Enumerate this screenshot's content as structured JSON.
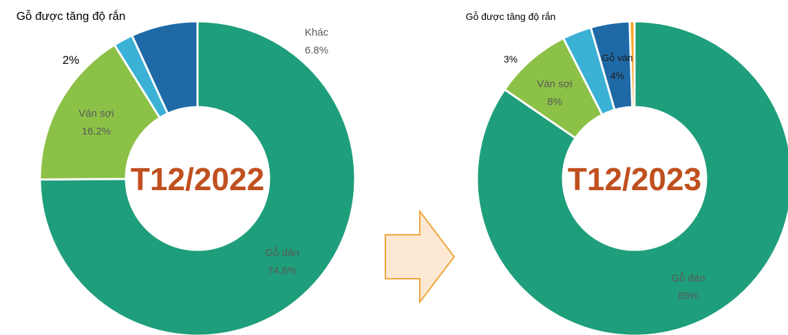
{
  "chart_data": [
    {
      "type": "donut",
      "title": "T12/2022",
      "categories": [
        "Gỗ dán",
        "Ván sợi",
        "Gỗ được tăng độ rắn",
        "Khác"
      ],
      "values": [
        74.6,
        16.2,
        2,
        6.8
      ],
      "value_labels": [
        "74.6%",
        "16.2%",
        "2%",
        "6.8%"
      ],
      "colors": [
        "#1f9e7b",
        "#8cc147",
        "#3cb1d6",
        "#1f6aa6"
      ]
    },
    {
      "type": "donut",
      "title": "T12/2023",
      "categories": [
        "Gỗ dán",
        "Ván sợi",
        "Gỗ được tăng độ rắn",
        "Gỗ ván",
        null
      ],
      "values": [
        85,
        8,
        3,
        4,
        0.5
      ],
      "value_labels": [
        "85%",
        "8%",
        "3%",
        "4%",
        null
      ],
      "colors": [
        "#1f9e7b",
        "#8cc147",
        "#3cb1d6",
        "#1f6aa6",
        "#f5a623"
      ]
    }
  ]
}
